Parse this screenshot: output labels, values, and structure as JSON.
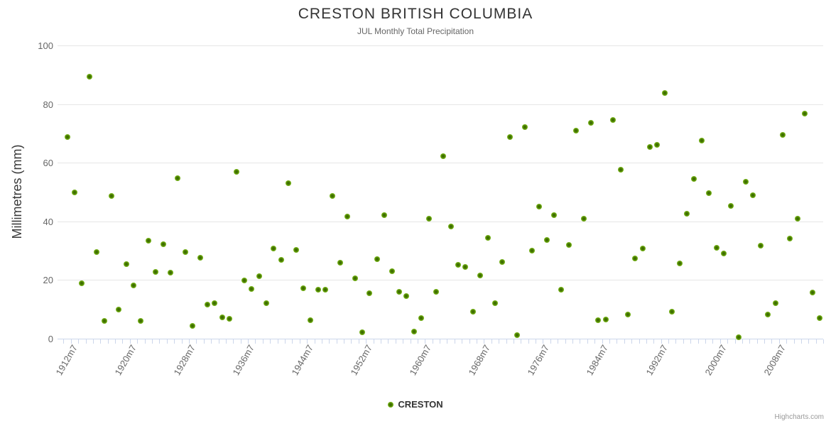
{
  "title": "CRESTON BRITISH COLUMBIA",
  "subtitle": "JUL Monthly Total Precipitation",
  "y_axis": {
    "title": "Millimetres (mm)",
    "ticks": [
      0,
      20,
      40,
      60,
      80,
      100
    ],
    "min": 0,
    "max": 100
  },
  "x_axis": {
    "labels": [
      "1912m7",
      "1920m7",
      "1928m7",
      "1936m7",
      "1944m7",
      "1952m7",
      "1960m7",
      "1968m7",
      "1976m7",
      "1984m7",
      "1992m7",
      "2000m7",
      "2008m7"
    ],
    "label_interval_years": 8,
    "start_year": 1912,
    "end_year": 2014
  },
  "legend": {
    "series_label": "CRESTON"
  },
  "credits": "Highcharts.com",
  "colors": {
    "marker_outer": "#86c232",
    "marker_inner": "#3e6e00",
    "gridline": "#e6e6e6",
    "axis": "#ccd6eb",
    "title_text": "#333333",
    "subtitle_text": "#666666",
    "axis_label_text": "#666666"
  },
  "chart_data": {
    "type": "scatter",
    "title": "CRESTON BRITISH COLUMBIA",
    "subtitle": "JUL Monthly Total Precipitation",
    "xlabel": "",
    "ylabel": "Millimetres (mm)",
    "ylim": [
      0,
      100
    ],
    "grid": "horizontal",
    "legend_position": "bottom-center",
    "x_tick_labels": [
      "1912m7",
      "1920m7",
      "1928m7",
      "1936m7",
      "1944m7",
      "1952m7",
      "1960m7",
      "1968m7",
      "1976m7",
      "1984m7",
      "1992m7",
      "2000m7",
      "2008m7"
    ],
    "series": [
      {
        "name": "CRESTON",
        "points": [
          [
            1912,
            68.8
          ],
          [
            1913,
            50.0
          ],
          [
            1914,
            18.8
          ],
          [
            1915,
            89.3
          ],
          [
            1916,
            29.6
          ],
          [
            1917,
            6.1
          ],
          [
            1918,
            48.6
          ],
          [
            1919,
            9.9
          ],
          [
            1920,
            25.4
          ],
          [
            1921,
            18.1
          ],
          [
            1922,
            6.1
          ],
          [
            1923,
            33.3
          ],
          [
            1924,
            22.8
          ],
          [
            1925,
            32.1
          ],
          [
            1926,
            22.6
          ],
          [
            1927,
            54.7
          ],
          [
            1928,
            29.5
          ],
          [
            1929,
            4.4
          ],
          [
            1930,
            27.6
          ],
          [
            1931,
            11.6
          ],
          [
            1932,
            12.2
          ],
          [
            1933,
            7.2
          ],
          [
            1934,
            6.7
          ],
          [
            1935,
            56.9
          ],
          [
            1936,
            19.8
          ],
          [
            1937,
            16.9
          ],
          [
            1938,
            21.4
          ],
          [
            1939,
            12.1
          ],
          [
            1940,
            30.7
          ],
          [
            1941,
            26.8
          ],
          [
            1942,
            53.1
          ],
          [
            1943,
            30.2
          ],
          [
            1944,
            17.3
          ],
          [
            1945,
            6.4
          ],
          [
            1946,
            16.8
          ],
          [
            1947,
            16.8
          ],
          [
            1948,
            48.6
          ],
          [
            1949,
            26.0
          ],
          [
            1950,
            41.6
          ],
          [
            1951,
            20.7
          ],
          [
            1952,
            2.1
          ],
          [
            1953,
            15.6
          ],
          [
            1954,
            27.1
          ],
          [
            1955,
            42.2
          ],
          [
            1956,
            23.1
          ],
          [
            1957,
            16.0
          ],
          [
            1958,
            14.5
          ],
          [
            1959,
            2.5
          ],
          [
            1960,
            7.1
          ],
          [
            1961,
            40.8
          ],
          [
            1962,
            16.1
          ],
          [
            1963,
            62.2
          ],
          [
            1964,
            38.3
          ],
          [
            1965,
            25.3
          ],
          [
            1966,
            24.5
          ],
          [
            1967,
            9.3
          ],
          [
            1968,
            21.5
          ],
          [
            1969,
            34.5
          ],
          [
            1970,
            12.0
          ],
          [
            1971,
            26.1
          ],
          [
            1972,
            68.8
          ],
          [
            1973,
            1.3
          ],
          [
            1974,
            72.1
          ],
          [
            1975,
            30.0
          ],
          [
            1976,
            45.0
          ],
          [
            1977,
            33.6
          ],
          [
            1978,
            42.1
          ],
          [
            1979,
            16.8
          ],
          [
            1980,
            32.0
          ],
          [
            1981,
            71.0
          ],
          [
            1982,
            40.8
          ],
          [
            1983,
            73.7
          ],
          [
            1984,
            6.3
          ],
          [
            1985,
            6.6
          ],
          [
            1986,
            74.6
          ],
          [
            1987,
            57.7
          ],
          [
            1988,
            8.2
          ],
          [
            1989,
            27.3
          ],
          [
            1990,
            30.7
          ],
          [
            1991,
            65.4
          ],
          [
            1992,
            66.2
          ],
          [
            1993,
            83.8
          ],
          [
            1994,
            9.1
          ],
          [
            1995,
            25.6
          ],
          [
            1996,
            42.6
          ],
          [
            1997,
            54.6
          ],
          [
            1998,
            67.6
          ],
          [
            1999,
            49.7
          ],
          [
            2000,
            30.9
          ],
          [
            2001,
            29.0
          ],
          [
            2002,
            45.2
          ],
          [
            2003,
            0.5
          ],
          [
            2004,
            53.4
          ],
          [
            2005,
            49.0
          ],
          [
            2006,
            31.8
          ],
          [
            2007,
            8.3
          ],
          [
            2008,
            12.0
          ],
          [
            2009,
            69.4
          ],
          [
            2010,
            34.2
          ],
          [
            2011,
            41.0
          ],
          [
            2012,
            76.7
          ],
          [
            2013,
            15.7
          ],
          [
            2014,
            7.0
          ]
        ]
      }
    ]
  }
}
